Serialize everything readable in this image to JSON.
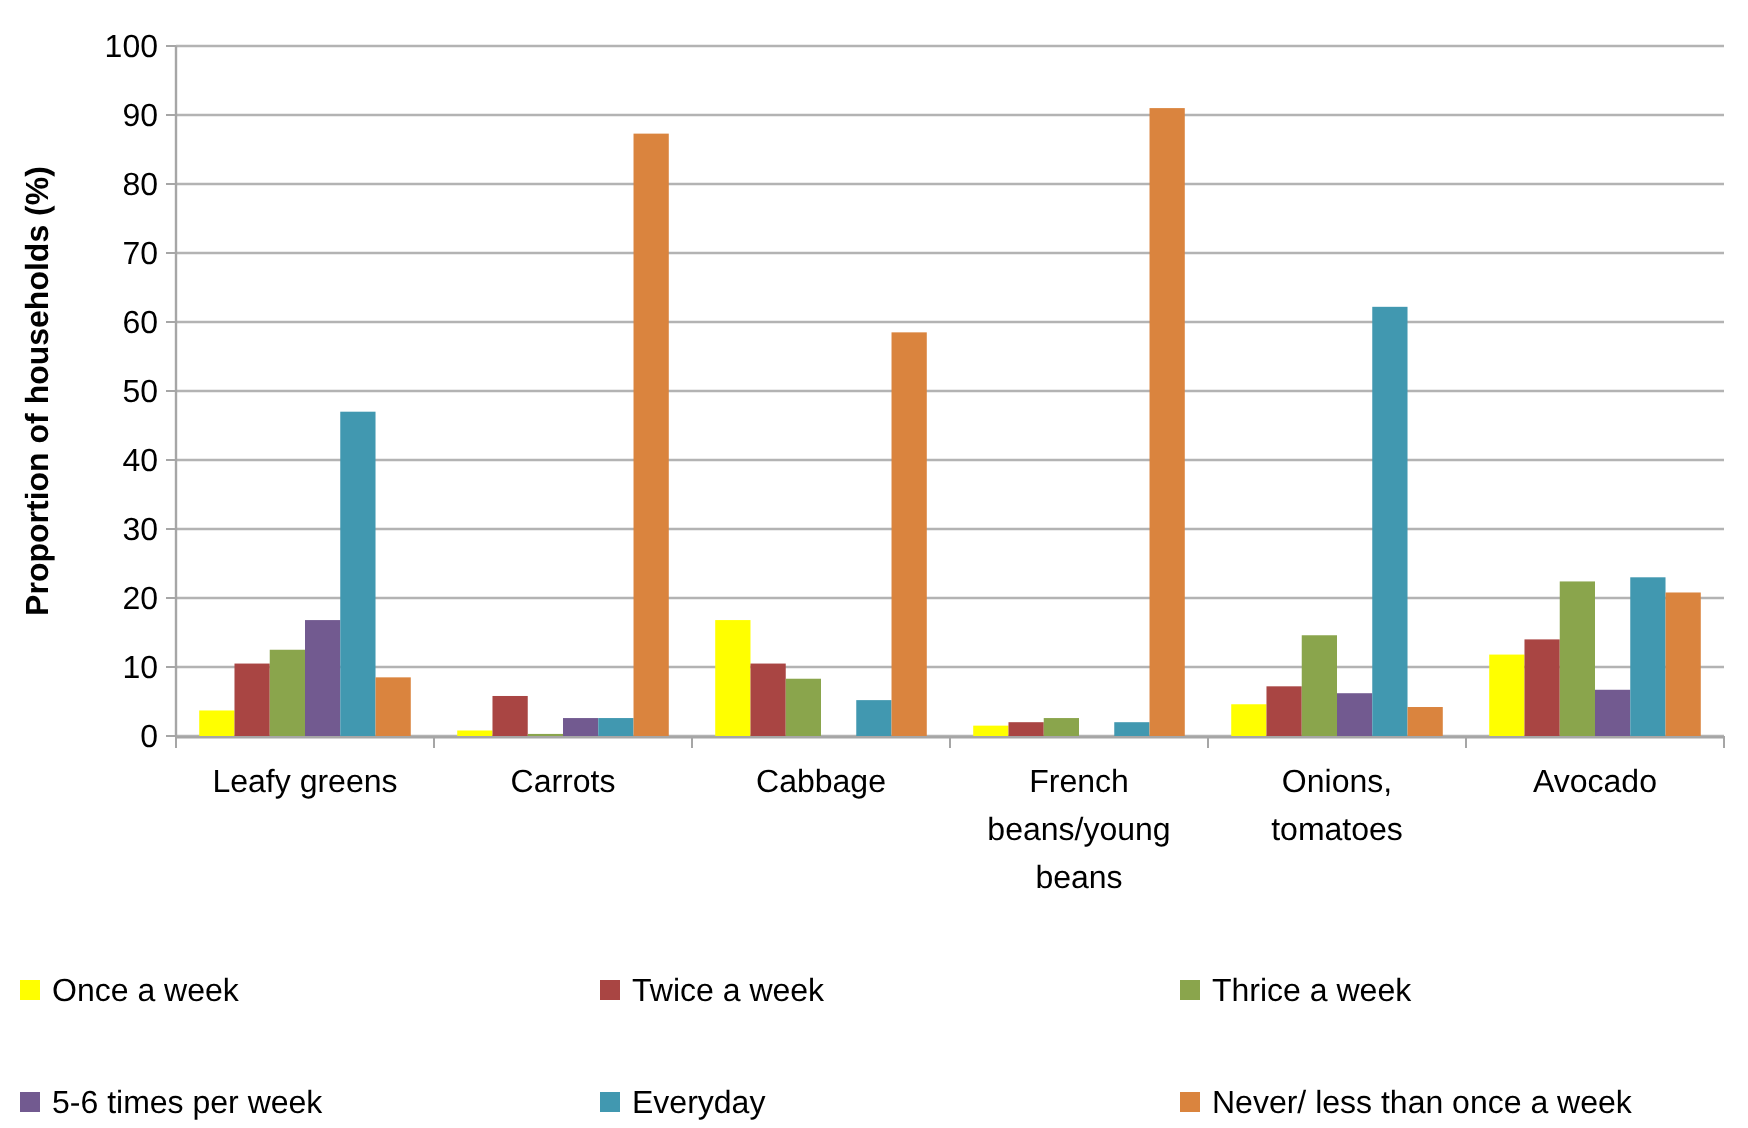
{
  "chart_data": {
    "type": "bar",
    "ylabel": "Proportion of households (%)",
    "categories": [
      "Leafy greens",
      "Carrots",
      "Cabbage",
      "French beans/young beans",
      "Onions, tomatoes",
      "Avocado"
    ],
    "series": [
      {
        "name": "Once a week",
        "color": "#ffff00",
        "values": [
          3.7,
          0.8,
          16.8,
          1.5,
          4.6,
          11.8
        ]
      },
      {
        "name": "Twice a week",
        "color": "#a94543",
        "values": [
          10.5,
          5.8,
          10.5,
          2,
          7.2,
          14
        ]
      },
      {
        "name": "Thrice a week",
        "color": "#8aa54c",
        "values": [
          12.5,
          0.3,
          8.3,
          2.6,
          14.6,
          22.4
        ]
      },
      {
        "name": "5-6 times per week",
        "color": "#725a90",
        "values": [
          16.8,
          2.6,
          0,
          0,
          6.2,
          6.7
        ]
      },
      {
        "name": "Everyday",
        "color": "#4198b0",
        "values": [
          47,
          2.6,
          5.2,
          2,
          62.2,
          23
        ]
      },
      {
        "name": "Never/ less than once a week",
        "color": "#da843e",
        "values": [
          8.5,
          87.3,
          58.5,
          91,
          4.2,
          20.8
        ]
      }
    ],
    "ylim": [
      0,
      100
    ],
    "yticks": [
      0,
      10,
      20,
      30,
      40,
      50,
      60,
      70,
      80,
      90,
      100
    ],
    "grid": "y",
    "legend": "bottom"
  }
}
